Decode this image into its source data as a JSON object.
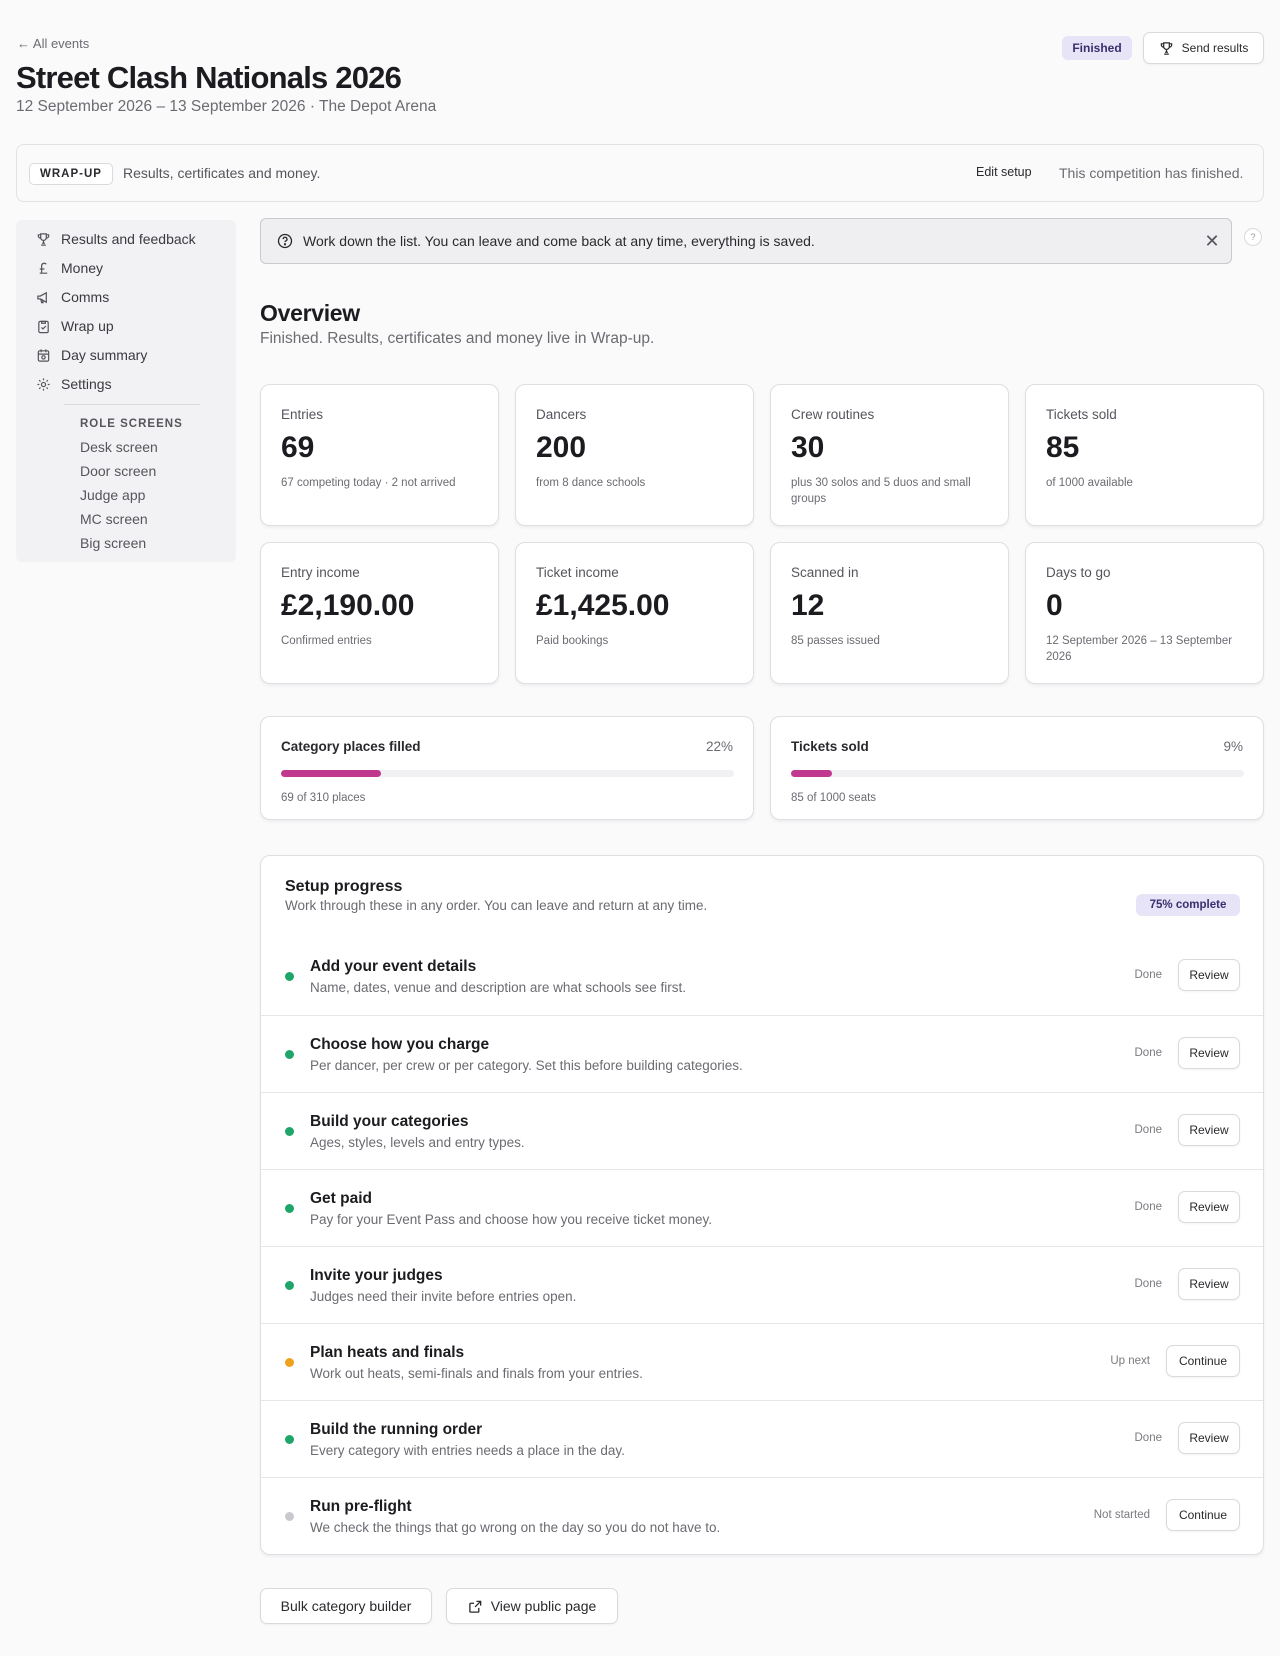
{
  "header": {
    "back_label": "← All events",
    "title": "Street Clash Nationals 2026",
    "subtitle": "12 September 2026 – 13 September 2026 · The Depot Arena",
    "status": "Finished",
    "send_results_label": "Send results"
  },
  "stage": {
    "tag": "WRAP-UP",
    "description": "Results, certificates and money.",
    "edit_label": "Edit setup",
    "status_text": "This competition has finished."
  },
  "sidebar": {
    "items": [
      {
        "label": "Results and feedback",
        "icon": "trophy-icon"
      },
      {
        "label": "Money",
        "icon": "pound-icon"
      },
      {
        "label": "Comms",
        "icon": "megaphone-icon"
      },
      {
        "label": "Wrap up",
        "icon": "clipboard-icon"
      },
      {
        "label": "Day summary",
        "icon": "calendar-icon"
      },
      {
        "label": "Settings",
        "icon": "gear-icon"
      }
    ],
    "role_heading": "ROLE SCREENS",
    "roles": [
      "Desk screen",
      "Door screen",
      "Judge app",
      "MC screen",
      "Big screen"
    ]
  },
  "banner": {
    "text": "Work down the list. You can leave and come back at any time, everything is saved.",
    "close": "✕",
    "help": "?"
  },
  "overview": {
    "title": "Overview",
    "subtitle": "Finished. Results, certificates and money live in Wrap-up."
  },
  "stats": [
    {
      "label": "Entries",
      "value": "69",
      "note": "67 competing today · 2 not arrived"
    },
    {
      "label": "Dancers",
      "value": "200",
      "note": "from 8 dance schools"
    },
    {
      "label": "Crew routines",
      "value": "30",
      "note": "plus 30 solos and 5 duos and small groups"
    },
    {
      "label": "Tickets sold",
      "value": "85",
      "note": "of 1000 available"
    },
    {
      "label": "Entry income",
      "value": "£2,190.00",
      "note": "Confirmed entries"
    },
    {
      "label": "Ticket income",
      "value": "£1,425.00",
      "note": "Paid bookings"
    },
    {
      "label": "Scanned in",
      "value": "12",
      "note": "85 passes issued"
    },
    {
      "label": "Days to go",
      "value": "0",
      "note": "12 September 2026 – 13 September 2026"
    }
  ],
  "progress": [
    {
      "label": "Category places filled",
      "pct_label": "22%",
      "fraction": 0.22,
      "note": "69 of 310 places"
    },
    {
      "label": "Tickets sold",
      "pct_label": "9%",
      "fraction": 0.09,
      "note": "85 of 1000 seats"
    }
  ],
  "colors": {
    "progress_fill": "#c0398f",
    "done": "#1fa56a",
    "up_next": "#f0a21c",
    "not_started": "#c9c9ce"
  },
  "setup": {
    "title": "Setup progress",
    "subtitle": "Work through these in any order. You can leave and return at any time.",
    "badge": "75% complete",
    "steps": [
      {
        "title": "Add your event details",
        "desc": "Name, dates, venue and description are what schools see first.",
        "state": "Done",
        "action": "Review",
        "status": "done"
      },
      {
        "title": "Choose how you charge",
        "desc": "Per dancer, per crew or per category. Set this before building categories.",
        "state": "Done",
        "action": "Review",
        "status": "done"
      },
      {
        "title": "Build your categories",
        "desc": "Ages, styles, levels and entry types.",
        "state": "Done",
        "action": "Review",
        "status": "done"
      },
      {
        "title": "Get paid",
        "desc": "Pay for your Event Pass and choose how you receive ticket money.",
        "state": "Done",
        "action": "Review",
        "status": "done"
      },
      {
        "title": "Invite your judges",
        "desc": "Judges need their invite before entries open.",
        "state": "Done",
        "action": "Review",
        "status": "done"
      },
      {
        "title": "Plan heats and finals",
        "desc": "Work out heats, semi-finals and finals from your entries.",
        "state": "Up next",
        "action": "Continue",
        "status": "up_next"
      },
      {
        "title": "Build the running order",
        "desc": "Every category with entries needs a place in the day.",
        "state": "Done",
        "action": "Review",
        "status": "done"
      },
      {
        "title": "Run pre-flight",
        "desc": "We check the things that go wrong on the day so you do not have to.",
        "state": "Not started",
        "action": "Continue",
        "status": "not_started"
      }
    ]
  },
  "footer": {
    "bulk_label": "Bulk category builder",
    "public_label": "View public page"
  }
}
